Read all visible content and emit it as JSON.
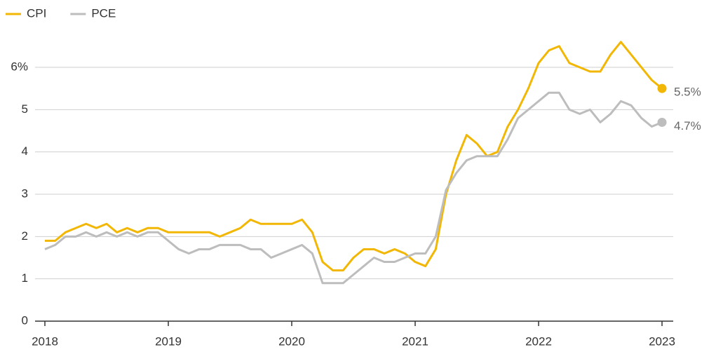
{
  "chart_data": {
    "type": "line",
    "x": [
      0,
      1,
      2,
      3,
      4,
      5,
      6,
      7,
      8,
      9,
      10,
      11,
      12,
      13,
      14,
      15,
      16,
      17,
      18,
      19,
      20,
      21,
      22,
      23,
      24,
      25,
      26,
      27,
      28,
      29,
      30,
      31,
      32,
      33,
      34,
      35,
      36,
      37,
      38,
      39,
      40,
      41,
      42,
      43,
      44,
      45,
      46,
      47,
      48,
      49,
      50,
      51,
      52,
      53,
      54,
      55,
      56,
      57,
      58,
      59,
      60
    ],
    "xlim": [
      0,
      60
    ],
    "xticks": [
      {
        "value": 0,
        "label": "2018"
      },
      {
        "value": 12,
        "label": "2019"
      },
      {
        "value": 24,
        "label": "2020"
      },
      {
        "value": 36,
        "label": "2021"
      },
      {
        "value": 48,
        "label": "2022"
      },
      {
        "value": 60,
        "label": "2023"
      }
    ],
    "ylim": [
      0,
      7
    ],
    "yticks": [
      0,
      1,
      2,
      3,
      4,
      5,
      {
        "value": 6,
        "label": "6%"
      }
    ],
    "grid": true,
    "legend": "top-left",
    "series": [
      {
        "name": "CPI",
        "color": "#f2b705",
        "values": [
          1.9,
          1.9,
          2.1,
          2.2,
          2.3,
          2.2,
          2.3,
          2.1,
          2.2,
          2.1,
          2.2,
          2.2,
          2.1,
          2.1,
          2.1,
          2.1,
          2.1,
          2.0,
          2.1,
          2.2,
          2.4,
          2.3,
          2.3,
          2.3,
          2.3,
          2.4,
          2.1,
          1.4,
          1.2,
          1.2,
          1.5,
          1.7,
          1.7,
          1.6,
          1.7,
          1.6,
          1.4,
          1.3,
          1.7,
          3.0,
          3.8,
          4.4,
          4.2,
          3.9,
          4.0,
          4.6,
          5.0,
          5.5,
          6.1,
          6.4,
          6.5,
          6.1,
          6.0,
          5.9,
          5.9,
          6.3,
          6.6,
          6.3,
          6.0,
          5.7,
          5.5
        ],
        "value_labels": [
          null,
          null,
          null,
          null,
          null,
          null,
          null,
          null,
          null,
          null,
          null,
          null,
          null,
          null,
          null,
          null,
          null,
          null,
          null,
          null,
          null,
          null,
          null,
          null,
          null,
          null,
          null,
          null,
          null,
          null,
          null,
          null,
          null,
          null,
          null,
          null,
          null,
          null,
          null,
          null,
          null,
          null,
          null,
          null,
          null,
          null,
          null,
          null,
          null,
          null,
          null,
          null,
          null,
          null,
          null,
          null,
          null,
          null,
          null,
          null,
          "5.5%"
        ]
      },
      {
        "name": "PCE",
        "color": "#bdbdbd",
        "values": [
          1.7,
          1.8,
          2.0,
          2.0,
          2.1,
          2.0,
          2.1,
          2.0,
          2.1,
          2.0,
          2.1,
          2.1,
          1.9,
          1.7,
          1.6,
          1.7,
          1.7,
          1.8,
          1.8,
          1.8,
          1.7,
          1.7,
          1.5,
          1.6,
          1.7,
          1.8,
          1.6,
          0.9,
          0.9,
          0.9,
          1.1,
          1.3,
          1.5,
          1.4,
          1.4,
          1.5,
          1.6,
          1.6,
          2.0,
          3.1,
          3.5,
          3.8,
          3.9,
          3.9,
          3.9,
          4.3,
          4.8,
          5.0,
          5.2,
          5.4,
          5.4,
          5.0,
          4.9,
          5.0,
          4.7,
          4.9,
          5.2,
          5.1,
          4.8,
          4.6,
          4.7
        ],
        "value_labels": [
          null,
          null,
          null,
          null,
          null,
          null,
          null,
          null,
          null,
          null,
          null,
          null,
          null,
          null,
          null,
          null,
          null,
          null,
          null,
          null,
          null,
          null,
          null,
          null,
          null,
          null,
          null,
          null,
          null,
          null,
          null,
          null,
          null,
          null,
          null,
          null,
          null,
          null,
          null,
          null,
          null,
          null,
          null,
          null,
          null,
          null,
          null,
          null,
          null,
          null,
          null,
          null,
          null,
          null,
          null,
          null,
          null,
          null,
          null,
          null,
          "4.7%"
        ]
      }
    ]
  }
}
